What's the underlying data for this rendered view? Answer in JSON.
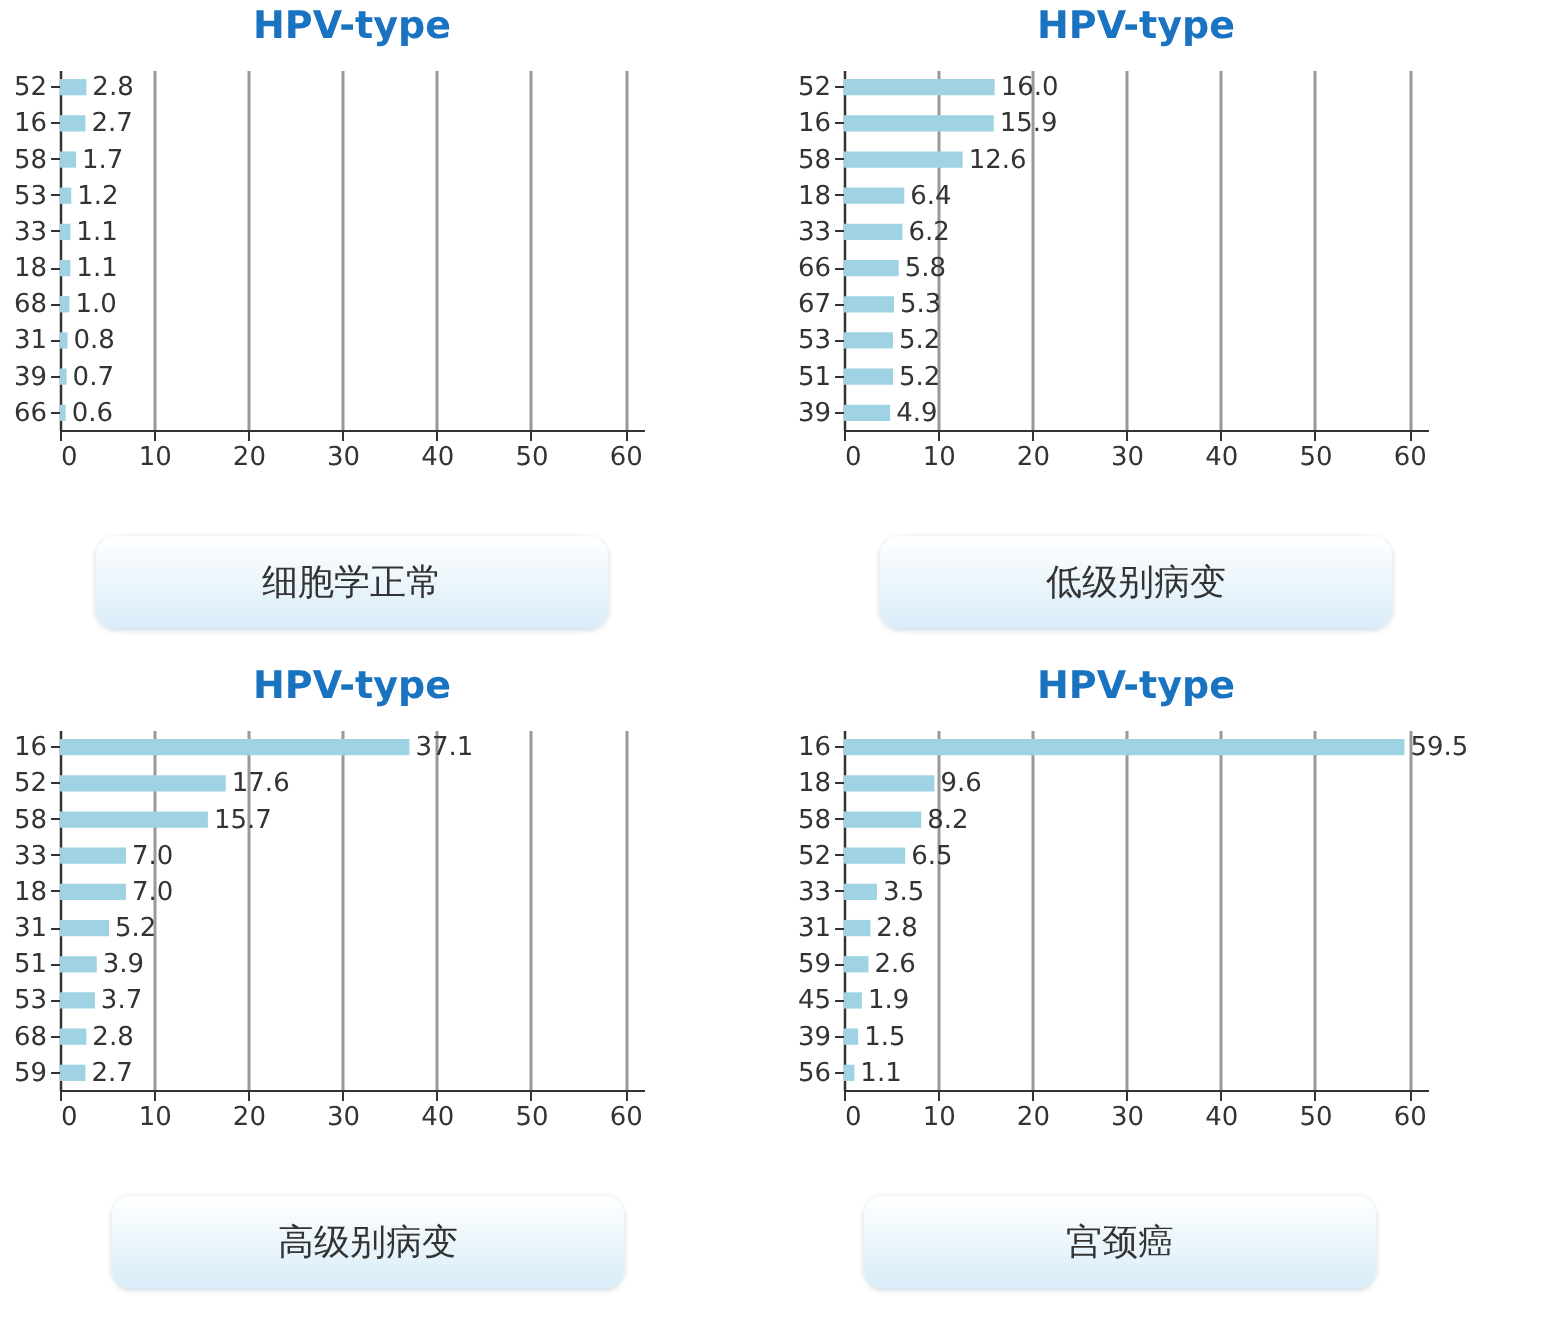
{
  "chart_data": [
    {
      "type": "bar",
      "orientation": "horizontal",
      "title": "HPV-type",
      "xlabel": "细胞学正常",
      "categories": [
        "52",
        "16",
        "58",
        "53",
        "33",
        "18",
        "68",
        "31",
        "39",
        "66"
      ],
      "series": [
        {
          "color": "#9fd3e3",
          "values": [
            2.8,
            2.7,
            1.7,
            1.2,
            1.1,
            1.1,
            1.0,
            0.8,
            0.7,
            0.6
          ],
          "value_labels": [
            "2.8",
            "2.7",
            "1.7",
            "1.2",
            "1.1",
            "1.1",
            "1.0",
            "0.8",
            "0.7",
            "0.6"
          ]
        }
      ],
      "xlim": [
        0,
        62
      ],
      "xticks": [
        0,
        10,
        20,
        30,
        40,
        50,
        60
      ],
      "grid": "x"
    },
    {
      "type": "bar",
      "orientation": "horizontal",
      "title": "HPV-type",
      "xlabel": "低级别病变",
      "categories": [
        "52",
        "16",
        "58",
        "18",
        "33",
        "66",
        "67",
        "53",
        "51",
        "39"
      ],
      "series": [
        {
          "color": "#9fd3e3",
          "values": [
            16.0,
            15.9,
            12.6,
            6.4,
            6.2,
            5.8,
            5.3,
            5.2,
            5.2,
            4.9
          ],
          "value_labels": [
            "16.0",
            "15.9",
            "12.6",
            "6.4",
            "6.2",
            "5.8",
            "5.3",
            "5.2",
            "5.2",
            "4.9"
          ]
        }
      ],
      "xlim": [
        0,
        62
      ],
      "xticks": [
        0,
        10,
        20,
        30,
        40,
        50,
        60
      ],
      "grid": "x"
    },
    {
      "type": "bar",
      "orientation": "horizontal",
      "title": "HPV-type",
      "xlabel": "高级别病变",
      "categories": [
        "16",
        "52",
        "58",
        "33",
        "18",
        "31",
        "51",
        "53",
        "68",
        "59"
      ],
      "series": [
        {
          "color": "#9fd3e3",
          "values": [
            37.1,
            17.6,
            15.7,
            7.0,
            7.0,
            5.2,
            3.9,
            3.7,
            2.8,
            2.7
          ],
          "value_labels": [
            "37.1",
            "17.6",
            "15.7",
            "7.0",
            "7.0",
            "5.2",
            "3.9",
            "3.7",
            "2.8",
            "2.7"
          ]
        }
      ],
      "xlim": [
        0,
        62
      ],
      "xticks": [
        0,
        10,
        20,
        30,
        40,
        50,
        60
      ],
      "grid": "x"
    },
    {
      "type": "bar",
      "orientation": "horizontal",
      "title": "HPV-type",
      "xlabel": "宫颈癌",
      "categories": [
        "16",
        "18",
        "58",
        "52",
        "33",
        "31",
        "59",
        "45",
        "39",
        "56"
      ],
      "series": [
        {
          "color": "#9fd3e3",
          "values": [
            59.5,
            9.6,
            8.2,
            6.5,
            3.5,
            2.8,
            2.6,
            1.9,
            1.5,
            1.1
          ],
          "value_labels": [
            "59.5",
            "9.6",
            "8.2",
            "6.5",
            "3.5",
            "2.8",
            "2.6",
            "1.9",
            "1.5",
            "1.1"
          ]
        }
      ],
      "xlim": [
        0,
        62
      ],
      "xticks": [
        0,
        10,
        20,
        30,
        40,
        50,
        60
      ],
      "grid": "x"
    }
  ]
}
